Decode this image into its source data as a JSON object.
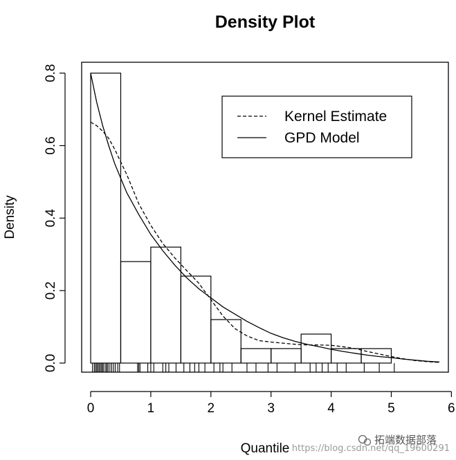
{
  "chart_data": {
    "type": "histogram",
    "title": "Density Plot",
    "xlabel": "Quantile",
    "ylabel": "Density",
    "xlim": [
      -0.15,
      5.95
    ],
    "ylim": [
      -0.025,
      0.83
    ],
    "x_ticks": [
      0,
      1,
      2,
      3,
      4,
      5,
      6
    ],
    "x_tick_labels": [
      "0",
      "1",
      "2",
      "3",
      "4",
      "5",
      "6"
    ],
    "y_ticks": [
      0.0,
      0.2,
      0.4,
      0.6,
      0.8
    ],
    "y_tick_labels": [
      "0.0",
      "0.2",
      "0.4",
      "0.6",
      "0.8"
    ],
    "grid": false,
    "legend_position": "top-right",
    "histogram": {
      "bin_edges": [
        0,
        0.5,
        1.0,
        1.5,
        2.0,
        2.5,
        3.0,
        3.5,
        4.0,
        4.5,
        5.0
      ],
      "densities": [
        0.8,
        0.28,
        0.32,
        0.24,
        0.12,
        0.04,
        0.04,
        0.08,
        0.04,
        0.04
      ]
    },
    "rug": [
      0.03,
      0.06,
      0.08,
      0.1,
      0.12,
      0.14,
      0.16,
      0.18,
      0.2,
      0.22,
      0.25,
      0.27,
      0.29,
      0.32,
      0.35,
      0.38,
      0.41,
      0.45,
      0.48,
      0.78,
      0.8,
      0.82,
      0.95,
      1.0,
      1.05,
      1.2,
      1.25,
      1.3,
      1.42,
      1.55,
      1.65,
      1.73,
      1.8,
      1.9,
      2.05,
      2.15,
      2.2,
      2.35,
      2.6,
      2.75,
      2.95,
      3.1,
      3.4,
      3.65,
      3.75,
      3.85,
      3.95,
      4.1,
      4.25,
      4.55,
      4.8,
      5.05
    ],
    "series": [
      {
        "name": "Kernel Estimate",
        "line_style": "dashed",
        "x": [
          0.0,
          0.1,
          0.2,
          0.3,
          0.4,
          0.5,
          0.6,
          0.8,
          1.0,
          1.2,
          1.4,
          1.6,
          1.8,
          2.0,
          2.2,
          2.4,
          2.6,
          2.8,
          3.0,
          3.2,
          3.4,
          3.6,
          3.8,
          4.0,
          4.2,
          4.4,
          4.6,
          4.8,
          5.0,
          5.2,
          5.4,
          5.6,
          5.8
        ],
        "y": [
          0.665,
          0.655,
          0.64,
          0.62,
          0.59,
          0.555,
          0.52,
          0.44,
          0.38,
          0.33,
          0.29,
          0.255,
          0.22,
          0.175,
          0.13,
          0.095,
          0.075,
          0.062,
          0.058,
          0.055,
          0.052,
          0.05,
          0.05,
          0.049,
          0.045,
          0.04,
          0.032,
          0.025,
          0.018,
          0.012,
          0.007,
          0.004,
          0.002
        ]
      },
      {
        "name": "GPD Model",
        "line_style": "solid",
        "x": [
          0.0,
          0.1,
          0.2,
          0.3,
          0.4,
          0.5,
          0.6,
          0.8,
          1.0,
          1.2,
          1.4,
          1.6,
          1.8,
          2.0,
          2.2,
          2.4,
          2.6,
          2.8,
          3.0,
          3.2,
          3.4,
          3.6,
          3.8,
          4.0,
          4.2,
          4.4,
          4.6,
          4.8,
          5.0,
          5.2,
          5.4,
          5.6,
          5.8
        ],
        "y": [
          0.8,
          0.72,
          0.655,
          0.6,
          0.55,
          0.51,
          0.47,
          0.41,
          0.355,
          0.31,
          0.27,
          0.235,
          0.205,
          0.18,
          0.155,
          0.135,
          0.115,
          0.098,
          0.082,
          0.07,
          0.06,
          0.052,
          0.045,
          0.038,
          0.032,
          0.027,
          0.022,
          0.018,
          0.015,
          0.011,
          0.008,
          0.005,
          0.003
        ]
      }
    ]
  },
  "watermark": {
    "url_text": "https://blog.csdn.net/qq_19600291",
    "brand_text": "拓端数据部落"
  }
}
